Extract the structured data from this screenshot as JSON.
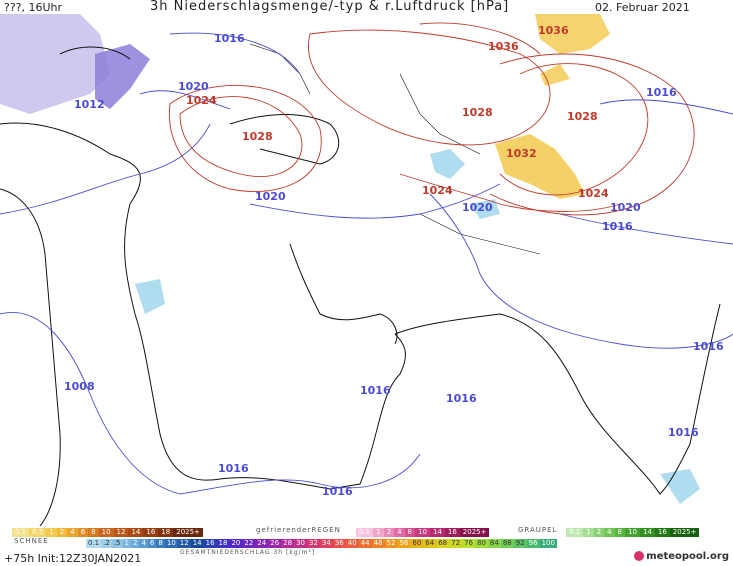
{
  "header": {
    "left": "???, 16Uhr",
    "title": "3h Niederschlagsmenge/-typ & r.Luftdruck [hPa]",
    "date": "02. Februar 2021"
  },
  "pressure_labels": [
    {
      "text": "1016",
      "color": "blue"
    },
    {
      "text": "1012",
      "color": "blue"
    },
    {
      "text": "1020",
      "color": "blue"
    },
    {
      "text": "1024",
      "color": "red"
    },
    {
      "text": "1028",
      "color": "red"
    },
    {
      "text": "1020",
      "color": "blue"
    },
    {
      "text": "1036",
      "color": "red"
    },
    {
      "text": "1036",
      "color": "red"
    },
    {
      "text": "1028",
      "color": "red"
    },
    {
      "text": "1028",
      "color": "red"
    },
    {
      "text": "1016",
      "color": "blue"
    },
    {
      "text": "1032",
      "color": "red"
    },
    {
      "text": "1024",
      "color": "red"
    },
    {
      "text": "1024",
      "color": "red"
    },
    {
      "text": "1020",
      "color": "blue"
    },
    {
      "text": "1020",
      "color": "blue"
    },
    {
      "text": "1016",
      "color": "blue"
    },
    {
      "text": "1016",
      "color": "blue"
    },
    {
      "text": "1008",
      "color": "blue"
    },
    {
      "text": "1016",
      "color": "blue"
    },
    {
      "text": "1016",
      "color": "blue"
    },
    {
      "text": "1016",
      "color": "blue"
    },
    {
      "text": "1016",
      "color": "blue"
    },
    {
      "text": "1016",
      "color": "blue"
    }
  ],
  "legend": {
    "row1_left": [
      "0.1",
      "0.5",
      "1",
      "2",
      "4",
      "6",
      "8",
      "10",
      "12",
      "14",
      "16",
      "18",
      "2025+"
    ],
    "row1_mid_label": "gefrierenderREGEN",
    "row1_mid": [
      "0.1",
      "1",
      "2",
      "4",
      "8",
      "10",
      "14",
      "16",
      "2025+"
    ],
    "row1_right_label": "GRAUPEL",
    "row1_right": [
      "0.1",
      "1",
      "2",
      "4",
      "8",
      "10",
      "14",
      "16",
      "2025+"
    ],
    "snow_label": "SCHNEE",
    "row2": [
      "0.1",
      ".2",
      ".5",
      "1",
      "2",
      "4",
      "6",
      "8",
      "10",
      "12",
      "14",
      "16",
      "18",
      "20",
      "22",
      "24",
      "26",
      "28",
      "30",
      "32",
      "34",
      "36",
      "40",
      "44",
      "48",
      "52",
      "56",
      "60",
      "64",
      "68",
      "72",
      "76",
      "80",
      "84",
      "88",
      "92",
      "96",
      "100"
    ],
    "total_label": "GESAMTNIEDERSCHLAG 3h [kg/m²]"
  },
  "footer": {
    "run": "+75h Init:12Z30JAN2021",
    "brand": "meteopool.org"
  },
  "colors": {
    "blue_contour": "#4b4bd6",
    "red_contour": "#c0392b",
    "coast": "#111111",
    "snow": "#9a8ed6",
    "rain": "#f0c419",
    "drizzle": "#b0dcef"
  }
}
